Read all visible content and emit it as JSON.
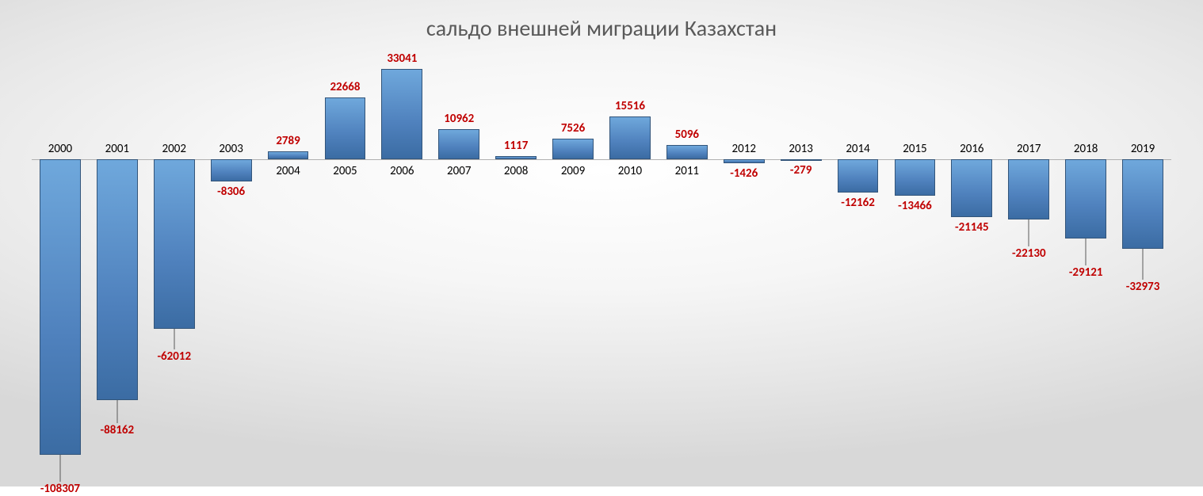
{
  "chart": {
    "type": "bar",
    "title": "сальдо внешней миграции Казахстан",
    "title_fontsize": 28,
    "title_color": "#595959",
    "background_gradient": [
      "#ffffff",
      "#f6f6f6",
      "#e8e8e8",
      "#d8d8d8"
    ],
    "bar_fill_gradient": [
      "#6fa8dc",
      "#4f81bd",
      "#3b6ca3"
    ],
    "bar_border_color": "#33557a",
    "value_label_color": "#c00000",
    "value_label_fontsize": 15,
    "value_label_bold": true,
    "category_label_color": "#000000",
    "category_label_fontsize": 15,
    "ylim": [
      -110000,
      35000
    ],
    "bar_width_ratio": 0.72,
    "categories": [
      "2000",
      "2001",
      "2002",
      "2003",
      "2004",
      "2005",
      "2006",
      "2007",
      "2008",
      "2009",
      "2010",
      "2011",
      "2012",
      "2013",
      "2014",
      "2015",
      "2016",
      "2017",
      "2018",
      "2019"
    ],
    "values": [
      -108307,
      -88162,
      -62012,
      -8306,
      2789,
      22668,
      33041,
      10962,
      1117,
      7526,
      15516,
      5096,
      -1426,
      -279,
      -12162,
      -13466,
      -21145,
      -22130,
      -29121,
      -32973
    ],
    "value_label_extra_offset": [
      30,
      25,
      22,
      0,
      0,
      0,
      0,
      0,
      0,
      0,
      0,
      0,
      0,
      0,
      0,
      0,
      0,
      30,
      30,
      35
    ]
  }
}
